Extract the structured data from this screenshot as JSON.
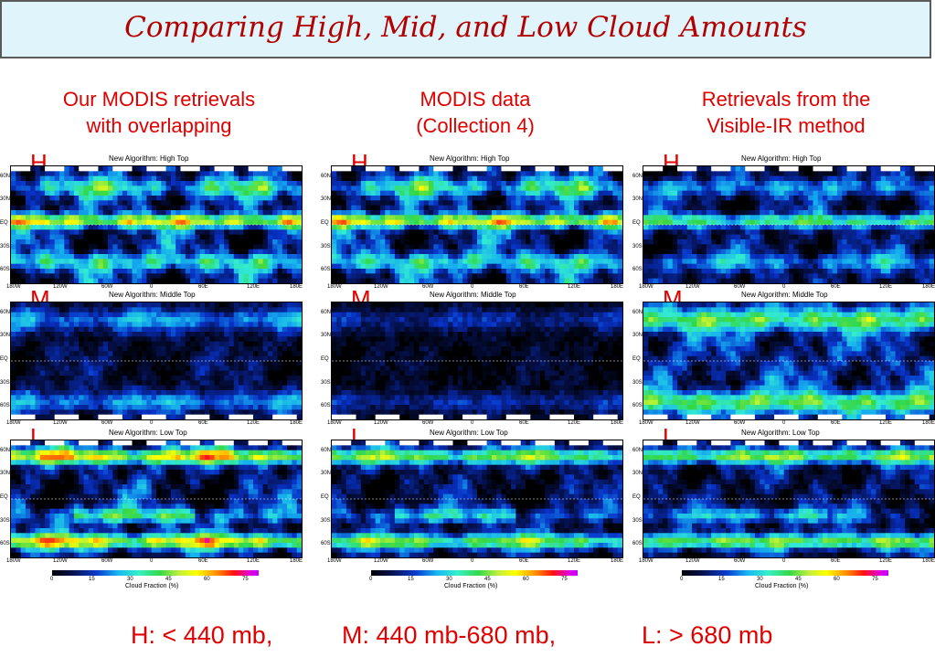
{
  "slide": {
    "title": "Comparing High, Mid, and Low Cloud Amounts",
    "columns": [
      {
        "line1": "Our MODIS retrievals",
        "line2": "with overlapping"
      },
      {
        "line1": "MODIS data",
        "line2": "(Collection 4)"
      },
      {
        "line1": "Retrievals from the",
        "line2": "Visible-IR method"
      }
    ],
    "row_letters": [
      "H",
      "M",
      "L"
    ],
    "map_titles": [
      "New Algorithm: High Top",
      "New Algorithm: Middle Top",
      "New Algorithm: Low Top"
    ],
    "lat_labels": [
      "60N",
      "30N",
      "EQ",
      "30S",
      "60S"
    ],
    "lon_labels": [
      "180W",
      "120W",
      "60W",
      "0",
      "60E",
      "120E",
      "180E"
    ],
    "colorbar": {
      "ticks": [
        "0",
        "15",
        "30",
        "45",
        "60",
        "75"
      ],
      "title": "Cloud Fraction (%)"
    },
    "legend": {
      "high": "H: < 440 mb,",
      "mid": "M: 440 mb-680 mb,",
      "low": "L: > 680 mb"
    },
    "colors": {
      "title": "#b30000",
      "labels": "#e00000",
      "banner_bg": "#dff4fb"
    }
  }
}
